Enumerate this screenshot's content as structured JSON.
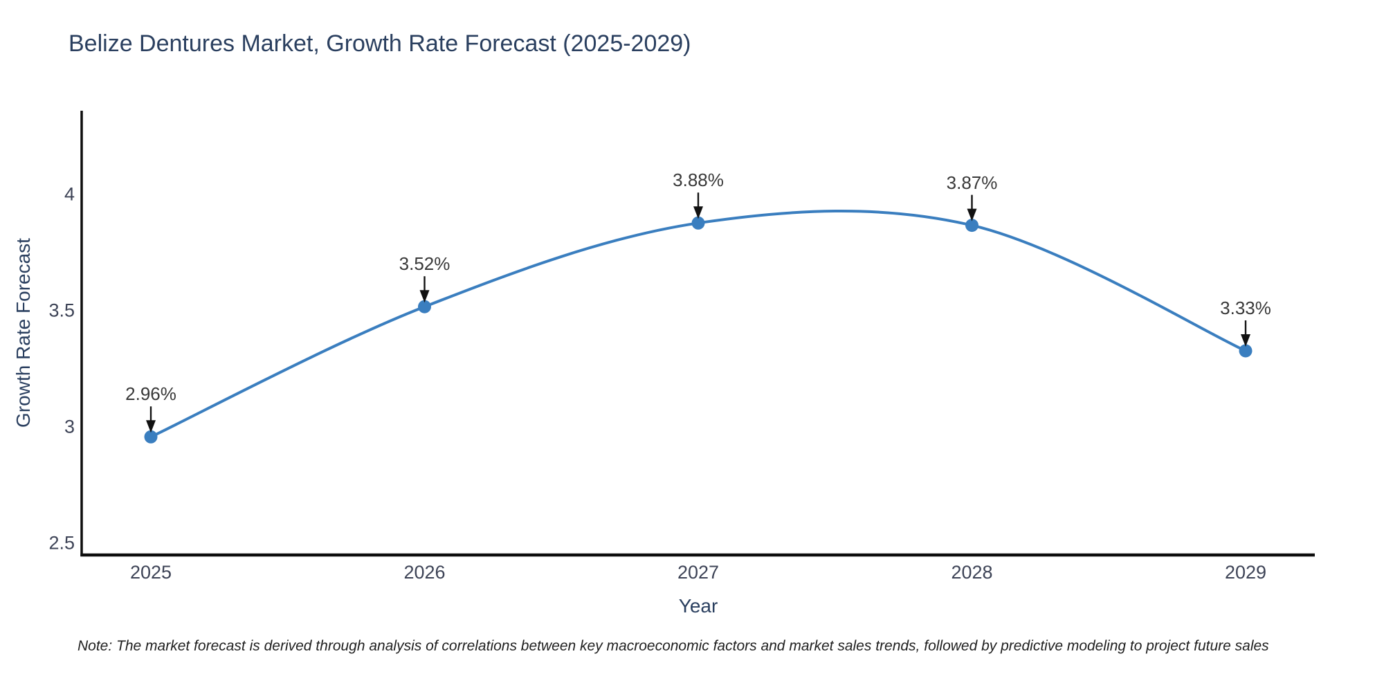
{
  "title": {
    "text": "Belize Dentures Market, Growth Rate Forecast (2025-2029)"
  },
  "chart_data": {
    "type": "line",
    "line_shape": "spline",
    "x": [
      2025,
      2026,
      2027,
      2028,
      2029
    ],
    "series": [
      {
        "name": "Growth Rate Forecast",
        "values": [
          2.96,
          3.52,
          3.88,
          3.87,
          3.33
        ]
      }
    ],
    "point_labels": [
      "2.96%",
      "3.52%",
      "3.88%",
      "3.87%",
      "3.33%"
    ],
    "title": "Belize Dentures Market, Growth Rate Forecast (2025-2029)",
    "xlabel": "Year",
    "ylabel": "Growth Rate Forecast",
    "yticks": [
      2.5,
      3,
      3.5,
      4
    ],
    "ylim": [
      2.452,
      4.363
    ],
    "grid": false,
    "legend": false,
    "annotations_arrow": "down",
    "colors": {
      "line": "#3a7ebf",
      "marker": "#3a7ebf",
      "axis": "#0d0d0d",
      "arrow": "#111111",
      "title_text": "#2a3f5f",
      "tick_text": "#3d4356",
      "annotation_text": "#383838"
    }
  },
  "note": {
    "text": "Note: The market forecast is derived through analysis of correlations between key macroeconomic factors and market sales trends, followed by predictive modeling to project future sales"
  }
}
